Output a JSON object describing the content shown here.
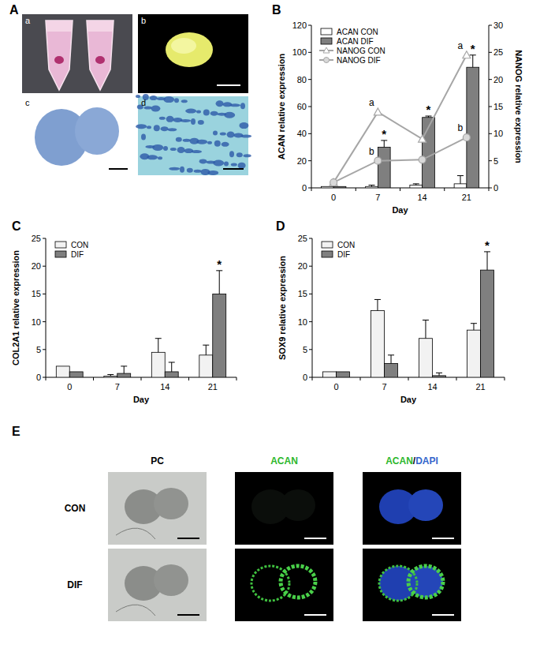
{
  "chart_data": [
    {
      "type": "bar",
      "title": "B",
      "categories": [
        "0",
        "7",
        "14",
        "21"
      ],
      "x_label": "Day",
      "y_label": "ACAN relative expression",
      "y2_label": "NANOG relative expression",
      "ylim": [
        0,
        120
      ],
      "yticks": [
        0,
        20,
        40,
        60,
        80,
        100,
        120
      ],
      "y2lim": [
        0,
        30
      ],
      "y2ticks": [
        0,
        5,
        10,
        15,
        20,
        25,
        30
      ],
      "legend": "upper left",
      "series": [
        {
          "name": "ACAN CON",
          "type": "bar",
          "color": "#ffffff",
          "values": [
            1,
            1,
            2,
            3
          ],
          "errors": [
            null,
            1,
            1,
            6
          ]
        },
        {
          "name": "ACAN DIF",
          "type": "bar",
          "color": "#7f7f7f",
          "values": [
            1,
            30,
            52,
            89
          ],
          "errors": [
            null,
            5,
            1,
            9
          ],
          "annotations": [
            null,
            "*",
            "*",
            "*"
          ]
        },
        {
          "name": "NANOG CON",
          "type": "line",
          "axis": "y2",
          "color": "#a6a6a6",
          "marker": "triangle",
          "values": [
            1,
            14,
            9,
            24.5
          ],
          "annotations": [
            null,
            "a",
            null,
            "a"
          ]
        },
        {
          "name": "NANOG DIF",
          "type": "line",
          "axis": "y2",
          "color": "#a6a6a6",
          "marker": "circle",
          "values": [
            1,
            5,
            5.2,
            9.3
          ],
          "annotations": [
            null,
            "b",
            null,
            "b"
          ]
        }
      ]
    },
    {
      "type": "bar",
      "title": "C",
      "categories": [
        "0",
        "7",
        "14",
        "21"
      ],
      "x_label": "Day",
      "y_label": "COL2A1 relative expression",
      "ylim": [
        0,
        25
      ],
      "yticks": [
        0,
        5,
        10,
        15,
        20,
        25
      ],
      "legend": "upper left",
      "series": [
        {
          "name": "CON",
          "color": "#f2f2f2",
          "values": [
            2,
            0.2,
            4.5,
            4
          ],
          "errors": [
            null,
            0.3,
            2.5,
            1.8
          ]
        },
        {
          "name": "DIF",
          "color": "#7f7f7f",
          "values": [
            1,
            0.7,
            1,
            15
          ],
          "errors": [
            null,
            1.3,
            1.7,
            4.2
          ],
          "annotations": [
            null,
            null,
            null,
            "*"
          ]
        }
      ]
    },
    {
      "type": "bar",
      "title": "D",
      "categories": [
        "0",
        "7",
        "14",
        "21"
      ],
      "x_label": "Day",
      "y_label": "SOX9 relative expression",
      "ylim": [
        0,
        25
      ],
      "yticks": [
        0,
        5,
        10,
        15,
        20,
        25
      ],
      "legend": "upper left",
      "series": [
        {
          "name": "CON",
          "color": "#f2f2f2",
          "values": [
            1,
            12,
            7,
            8.5
          ],
          "errors": [
            null,
            2,
            3.3,
            1.2
          ]
        },
        {
          "name": "DIF",
          "color": "#7f7f7f",
          "values": [
            1,
            2.5,
            0.3,
            19.3
          ],
          "errors": [
            null,
            1.5,
            0.5,
            3.3
          ],
          "annotations": [
            null,
            null,
            null,
            "*"
          ]
        }
      ]
    }
  ],
  "panels": {
    "A": {
      "label": "A",
      "subpanels": [
        "a",
        "b",
        "c",
        "d"
      ]
    },
    "E": {
      "label": "E",
      "columns": [
        {
          "parts": [
            {
              "text": "PC",
              "color": "#000000"
            }
          ]
        },
        {
          "parts": [
            {
              "text": "ACAN",
              "color": "#2db82d"
            }
          ]
        },
        {
          "parts": [
            {
              "text": "ACAN",
              "color": "#2db82d"
            },
            {
              "text": "/",
              "color": "#000000"
            },
            {
              "text": "DAPI",
              "color": "#3366cc"
            }
          ]
        }
      ],
      "rows": [
        "CON",
        "DIF"
      ]
    }
  }
}
